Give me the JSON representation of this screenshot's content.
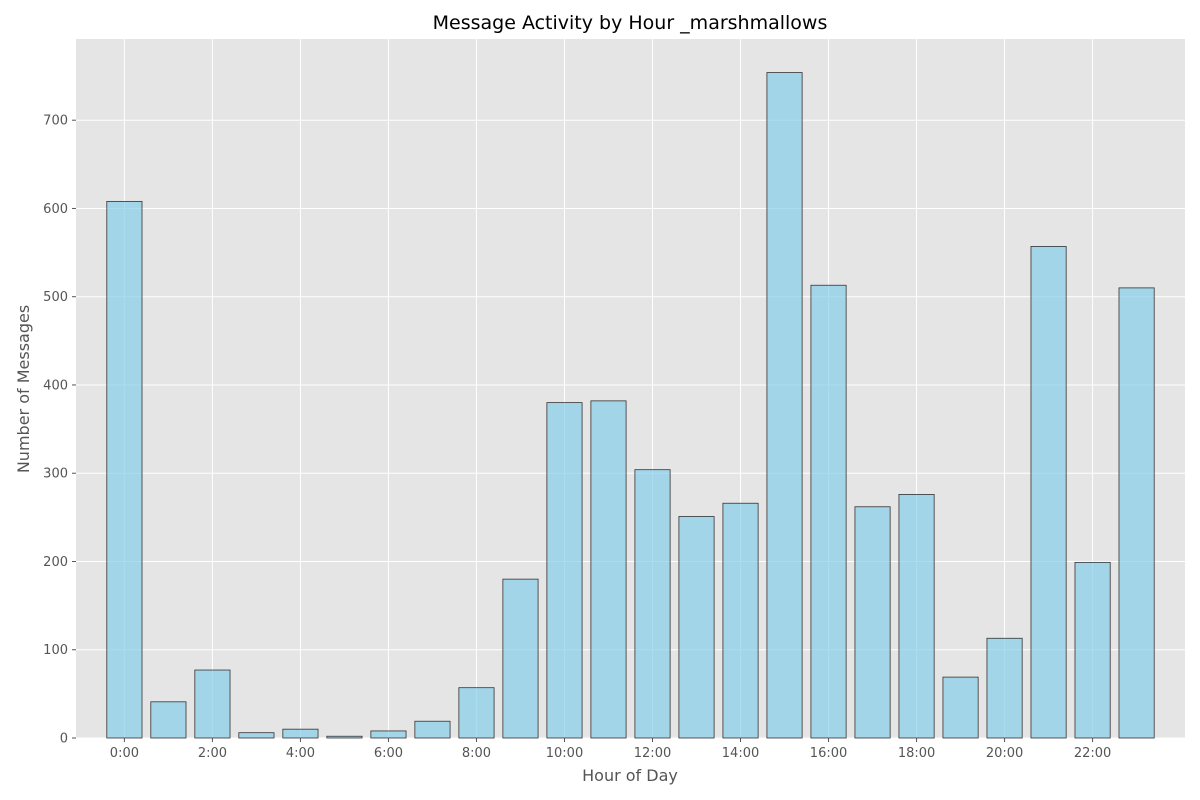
{
  "chart_data": {
    "type": "bar",
    "title": "Message Activity by Hour _marshmallows",
    "xlabel": "Hour of Day",
    "ylabel": "Number of Messages",
    "x": [
      0,
      1,
      2,
      3,
      4,
      5,
      6,
      7,
      8,
      9,
      10,
      11,
      12,
      13,
      14,
      15,
      16,
      17,
      18,
      19,
      20,
      21,
      22,
      23
    ],
    "values": [
      608,
      41,
      77,
      6,
      10,
      2,
      8,
      19,
      57,
      180,
      380,
      382,
      304,
      251,
      266,
      754,
      513,
      262,
      276,
      69,
      113,
      557,
      199,
      510
    ],
    "xtick_values": [
      0,
      2,
      4,
      6,
      8,
      10,
      12,
      14,
      16,
      18,
      20,
      22
    ],
    "xtick_labels": [
      "0:00",
      "2:00",
      "4:00",
      "6:00",
      "8:00",
      "10:00",
      "12:00",
      "14:00",
      "16:00",
      "18:00",
      "20:00",
      "22:00"
    ],
    "yticks": [
      0,
      100,
      200,
      300,
      400,
      500,
      600,
      700
    ],
    "xlim": [
      -1.1,
      24.1
    ],
    "ylim": [
      0,
      792
    ],
    "grid": true,
    "colors": {
      "plot_background": "#e5e5e5",
      "bar_fill": "#87ceeb",
      "bar_edge": "#333333",
      "grid": "#ffffff"
    }
  }
}
